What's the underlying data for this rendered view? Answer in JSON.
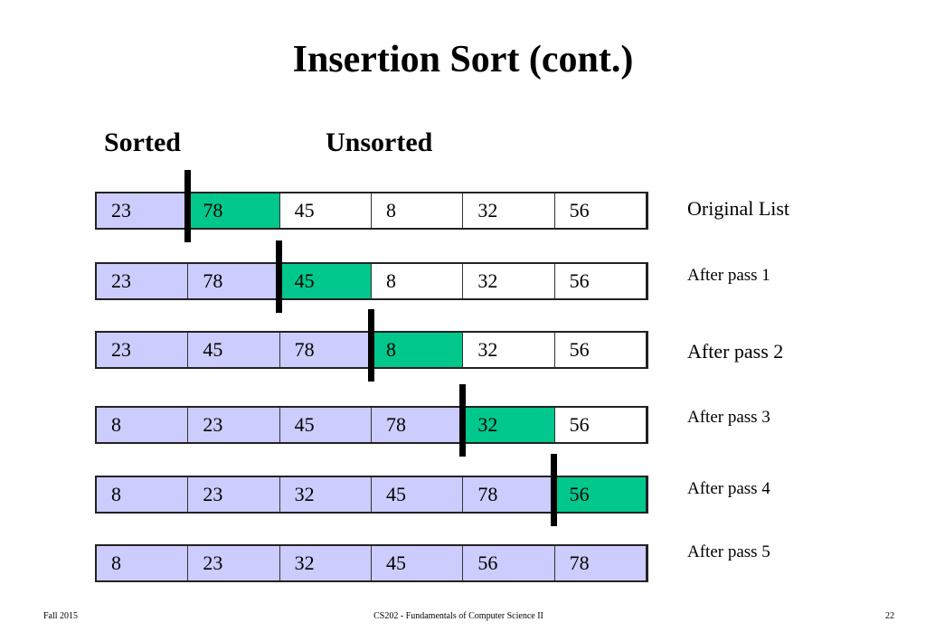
{
  "slide": {
    "title": "Insertion Sort (cont.)",
    "sorted_label": "Sorted",
    "unsorted_label": "Unsorted"
  },
  "rows": [
    {
      "label": "Original List",
      "values": [
        "23",
        "78",
        "45",
        "8",
        "32",
        "56"
      ],
      "sorted_count": 1,
      "current_index": 1
    },
    {
      "label": "After pass 1",
      "values": [
        "23",
        "78",
        "45",
        "8",
        "32",
        "56"
      ],
      "sorted_count": 2,
      "current_index": 2
    },
    {
      "label": "After pass 2",
      "values": [
        "23",
        "45",
        "78",
        "8",
        "32",
        "56"
      ],
      "sorted_count": 3,
      "current_index": 3
    },
    {
      "label": "After pass 3",
      "values": [
        "8",
        "23",
        "45",
        "78",
        "32",
        "56"
      ],
      "sorted_count": 4,
      "current_index": 4
    },
    {
      "label": "After pass 4",
      "values": [
        "8",
        "23",
        "32",
        "45",
        "78",
        "56"
      ],
      "sorted_count": 5,
      "current_index": 5
    },
    {
      "label": "After pass 5",
      "values": [
        "8",
        "23",
        "32",
        "45",
        "56",
        "78"
      ],
      "sorted_count": 6,
      "current_index": -1
    }
  ],
  "colors": {
    "sorted": "#ccccff",
    "current": "#00c78c",
    "unsorted": "#ffffff",
    "divider": "#000000"
  },
  "footer": {
    "left": "Fall 2015",
    "center": "CS202 - Fundamentals of Computer Science II",
    "right": "22"
  }
}
